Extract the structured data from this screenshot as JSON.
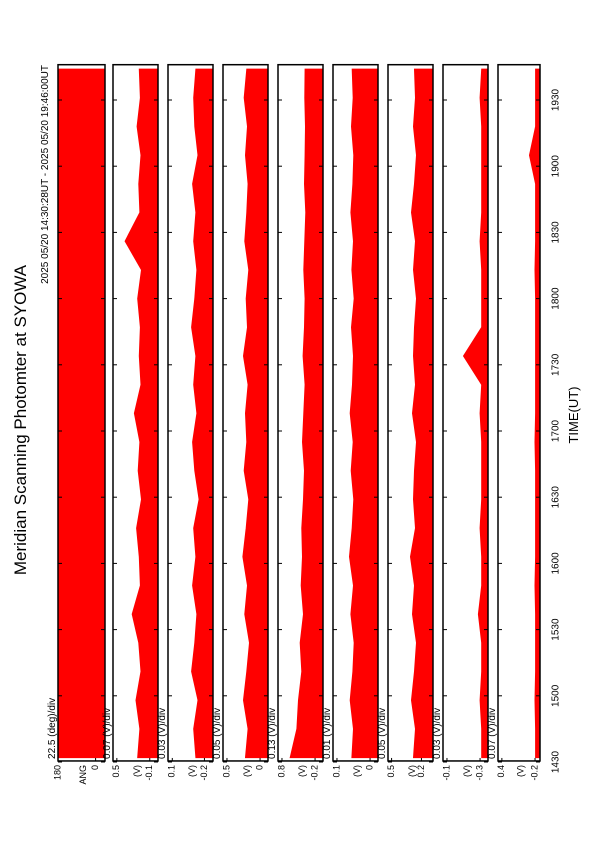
{
  "chart_data": {
    "type": "line",
    "title": "Meridian Scanning Photomter at SYOWA",
    "subtitle": "2025 05/20 14:30:28UT - 2025 05/20 19:46:00UT",
    "xlabel": "TIME(UT)",
    "xlim": [
      870.47,
      1186
    ],
    "xticks": [
      {
        "value": 870,
        "label": "1430"
      },
      {
        "value": 900,
        "label": "1500"
      },
      {
        "value": 930,
        "label": "1530"
      },
      {
        "value": 960,
        "label": "1600"
      },
      {
        "value": 990,
        "label": "1630"
      },
      {
        "value": 1020,
        "label": "1700"
      },
      {
        "value": 1050,
        "label": "1730"
      },
      {
        "value": 1080,
        "label": "1800"
      },
      {
        "value": 1110,
        "label": "1830"
      },
      {
        "value": 1140,
        "label": "1900"
      },
      {
        "value": 1170,
        "label": "1930"
      }
    ],
    "x": [
      872,
      885,
      898,
      911,
      924,
      937,
      950,
      963,
      976,
      989,
      1002,
      1015,
      1028,
      1041,
      1054,
      1067,
      1080,
      1093,
      1106,
      1119,
      1132,
      1145,
      1158,
      1171,
      1184
    ],
    "color": "#ff0000",
    "panels": [
      {
        "label": "ANG",
        "scale": "22.5 (deg)/div",
        "ylim": [
          -45,
          180
        ],
        "yticks": [
          180,
          0
        ],
        "values": [
          180,
          180,
          180,
          180,
          180,
          180,
          180,
          180,
          180,
          180,
          180,
          180,
          180,
          180,
          180,
          180,
          180,
          180,
          180,
          180,
          180,
          180,
          180,
          180,
          180
        ]
      },
      {
        "label": "(V)",
        "scale": "0.07 (V)/div",
        "ylim": [
          -0.25,
          0.57
        ],
        "yticks": [
          0.5,
          -0.1
        ],
        "values": [
          0.12,
          0.08,
          0.15,
          0.06,
          0.1,
          0.22,
          0.07,
          0.09,
          0.14,
          0.05,
          0.11,
          0.08,
          0.18,
          0.06,
          0.09,
          0.07,
          0.12,
          0.05,
          0.35,
          0.08,
          0.1,
          0.06,
          0.13,
          0.07,
          0.09
        ]
      },
      {
        "label": "(V)",
        "scale": "0.03 (V)/div",
        "ylim": [
          -0.28,
          0.14
        ],
        "yticks": [
          0.1,
          -0.2
        ],
        "values": [
          -0.12,
          -0.1,
          -0.14,
          -0.08,
          -0.11,
          -0.13,
          -0.09,
          -0.12,
          -0.1,
          -0.15,
          -0.11,
          -0.09,
          -0.13,
          -0.1,
          -0.12,
          -0.08,
          -0.11,
          -0.13,
          -0.1,
          -0.12,
          -0.09,
          -0.14,
          -0.11,
          -0.1,
          -0.12
        ]
      },
      {
        "label": "(V)",
        "scale": "0.05 (V)/div",
        "ylim": [
          -0.12,
          0.56
        ],
        "yticks": [
          0.5,
          0.0
        ],
        "values": [
          0.22,
          0.18,
          0.25,
          0.2,
          0.16,
          0.23,
          0.19,
          0.26,
          0.21,
          0.17,
          0.24,
          0.2,
          0.22,
          0.18,
          0.25,
          0.19,
          0.21,
          0.17,
          0.23,
          0.2,
          0.18,
          0.22,
          0.19,
          0.24,
          0.2
        ]
      },
      {
        "label": "(V)",
        "scale": "0.13 (V)/div",
        "ylim": [
          -0.44,
          0.92
        ],
        "yticks": [
          0.8,
          -0.2
        ],
        "values": [
          0.55,
          0.35,
          0.3,
          0.2,
          0.25,
          0.15,
          0.22,
          0.18,
          0.2,
          0.15,
          0.12,
          0.18,
          0.14,
          0.1,
          0.16,
          0.12,
          0.1,
          0.14,
          0.11,
          0.08,
          0.12,
          0.1,
          0.09,
          0.11,
          0.1
        ]
      },
      {
        "label": "(V)",
        "scale": "0.01 (V)/div",
        "ylim": [
          -0.024,
          0.112
        ],
        "yticks": [
          0.1,
          0.0
        ],
        "values": [
          0.055,
          0.05,
          0.06,
          0.052,
          0.048,
          0.058,
          0.05,
          0.062,
          0.054,
          0.049,
          0.057,
          0.051,
          0.06,
          0.053,
          0.05,
          0.056,
          0.048,
          0.055,
          0.05,
          0.058,
          0.052,
          0.049,
          0.056,
          0.051,
          0.054
        ]
      },
      {
        "label": "(V)",
        "scale": "0.05 (V)/div",
        "ylim": [
          0.084,
          0.536
        ],
        "yticks": [
          0.5,
          0.2
        ],
        "values": [
          0.28,
          0.26,
          0.3,
          0.27,
          0.25,
          0.29,
          0.27,
          0.31,
          0.26,
          0.28,
          0.27,
          0.25,
          0.29,
          0.26,
          0.28,
          0.27,
          0.25,
          0.28,
          0.26,
          0.3,
          0.27,
          0.25,
          0.28,
          0.26,
          0.27
        ]
      },
      {
        "label": "(V)",
        "scale": "0.03 (V)/div",
        "ylim": [
          -0.348,
          -0.076
        ],
        "yticks": [
          -0.1,
          -0.3
        ],
        "values": [
          -0.31,
          -0.31,
          -0.3,
          -0.31,
          -0.31,
          -0.29,
          -0.31,
          -0.31,
          -0.3,
          -0.31,
          -0.31,
          -0.31,
          -0.3,
          -0.31,
          -0.2,
          -0.31,
          -0.31,
          -0.31,
          -0.3,
          -0.31,
          -0.31,
          -0.31,
          -0.31,
          -0.3,
          -0.31
        ]
      },
      {
        "label": "(V)",
        "scale": "0.07 (V)/div",
        "ylim": [
          -0.29,
          0.47
        ],
        "yticks": [
          0.4,
          -0.2
        ],
        "values": [
          -0.21,
          -0.21,
          -0.2,
          -0.21,
          -0.21,
          -0.21,
          -0.2,
          -0.21,
          -0.21,
          -0.21,
          -0.21,
          -0.2,
          -0.21,
          -0.21,
          -0.21,
          -0.21,
          -0.21,
          -0.2,
          -0.21,
          -0.21,
          -0.21,
          -0.1,
          -0.21,
          -0.21,
          -0.21
        ]
      }
    ]
  }
}
